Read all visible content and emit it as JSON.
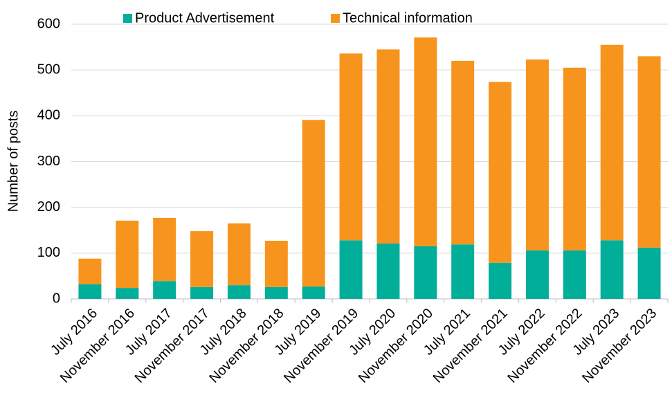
{
  "chart_data": {
    "type": "stacked_bar",
    "y_label": "Number of posts",
    "categories": [
      "July 2016",
      "November 2016",
      "July 2017",
      "November 2017",
      "July 2018",
      "November 2018",
      "July 2019",
      "November 2019",
      "July 2020",
      "November 2020",
      "July 2021",
      "November 2021",
      "July 2022",
      "November 2022",
      "July 2023",
      "November 2023"
    ],
    "series": [
      {
        "name": "Product Advertisement",
        "color": "#00ae9a",
        "values": [
          32,
          24,
          39,
          26,
          30,
          26,
          27,
          128,
          121,
          115,
          119,
          79,
          106,
          106,
          128,
          112
        ]
      },
      {
        "name": "Technical information",
        "color": "#f7941d",
        "values": [
          56,
          147,
          138,
          122,
          135,
          101,
          364,
          408,
          424,
          456,
          401,
          395,
          417,
          399,
          427,
          418
        ]
      }
    ],
    "ylim": [
      0,
      600
    ],
    "yticks": [
      0,
      100,
      200,
      300,
      400,
      500,
      600
    ],
    "grid": true,
    "legend": "top"
  }
}
